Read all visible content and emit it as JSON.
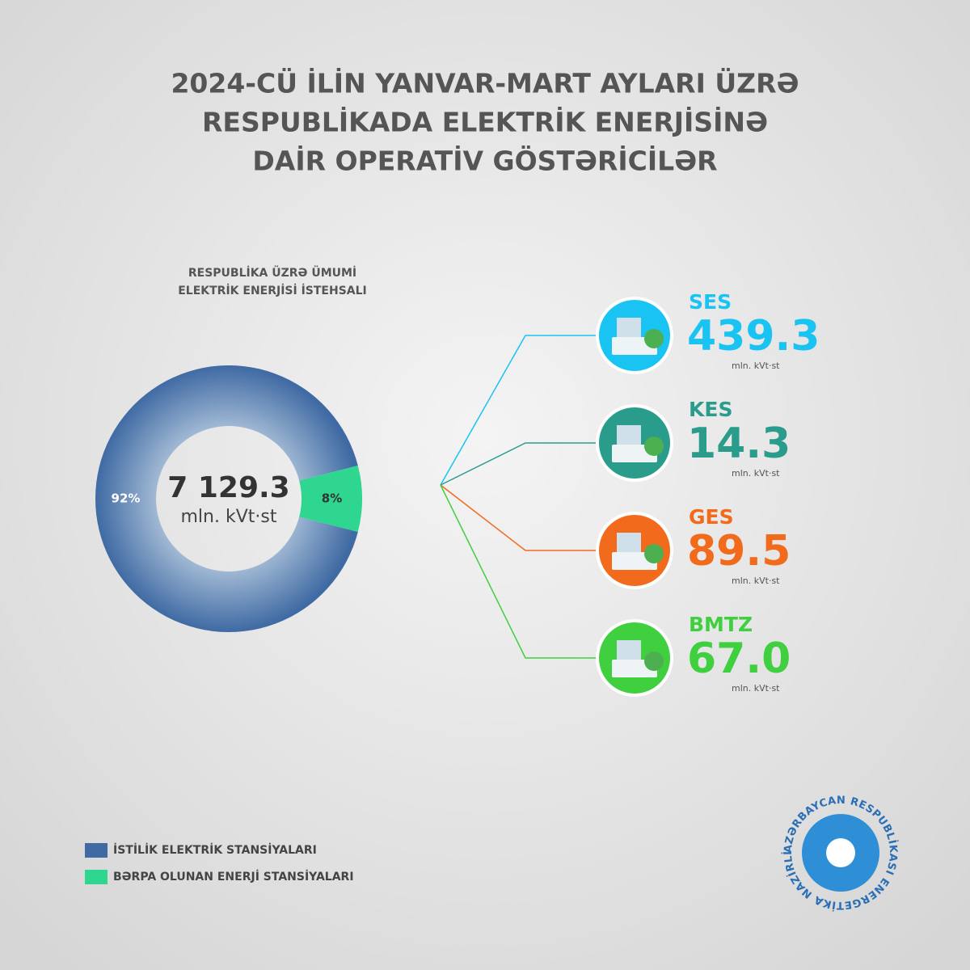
{
  "chart_data": {
    "type": "pie",
    "title": [
      "2024-CÜ İLİN YANVAR-MART AYLARI ÜZRƏ",
      "RESPUBLİKADA ELEKTRİK ENERJİSİNƏ",
      "DAİR OPERATİV GÖSTƏRİCİLƏR"
    ],
    "subtitle": [
      "RESPUBLİKA ÜZRƏ ÜMUMİ",
      "ELEKTRİK ENERJİSİ İSTEHSALI"
    ],
    "categories": [
      "İSTİLİK ELEKTRİK STANSİYALARI",
      "BƏRPA OLUNAN ENERJİ STANSİYALARI"
    ],
    "values": [
      92,
      8
    ],
    "value_labels": [
      "92%",
      "8%"
    ],
    "colors": [
      "#3f6aa3",
      "#2fd68f"
    ],
    "total": {
      "value": 7129.3,
      "label": "7 129.3"
    },
    "total_unit": "mln. kVt·st",
    "breakdown": [
      {
        "name": "SES",
        "value": 439.3,
        "unit": "mln. kVt·st",
        "color": "#19c3f2"
      },
      {
        "name": "KES",
        "value": 14.3,
        "unit": "mln. kVt·st",
        "color": "#2a9c8c"
      },
      {
        "name": "GES",
        "value": 89.5,
        "unit": "mln. kVt·st",
        "color": "#f26a1b"
      },
      {
        "name": "BMTZ",
        "value": 67.0,
        "value_label": "67.0",
        "unit": "mln. kVt·st",
        "color": "#3fcf3f"
      }
    ]
  },
  "logo": {
    "text": "AZƏRBAYCAN RESPUBLİKASI ENERGETİKA NAZİRLİYİ"
  }
}
